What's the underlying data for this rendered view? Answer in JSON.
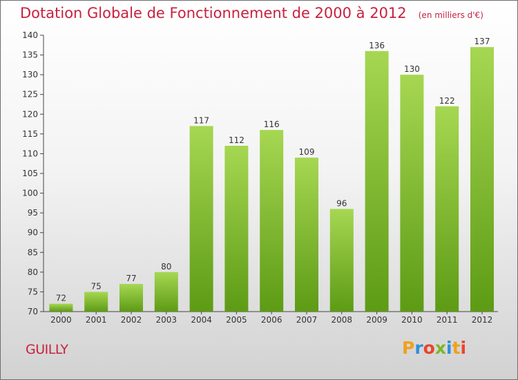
{
  "header": {
    "title": "Dotation Globale de Fonctionnement de 2000 à 2012",
    "unit": "(en milliers d'€)"
  },
  "footer": {
    "commune": "GUILLY",
    "logo_letters": [
      "P",
      "r",
      "o",
      "x",
      "i",
      "t",
      "i"
    ]
  },
  "colors": {
    "title": "#c8213f",
    "bar_light": "#a6d752",
    "bar_dark": "#5d9b15"
  },
  "chart_data": {
    "type": "bar",
    "title": "Dotation Globale de Fonctionnement de 2000 à 2012",
    "subtitle": "(en milliers d'€)",
    "categories": [
      "2000",
      "2001",
      "2002",
      "2003",
      "2004",
      "2005",
      "2006",
      "2007",
      "2008",
      "2009",
      "2010",
      "2011",
      "2012"
    ],
    "values": [
      72,
      75,
      77,
      80,
      117,
      112,
      116,
      109,
      96,
      136,
      130,
      122,
      137
    ],
    "ylim": [
      70,
      140
    ],
    "yticks": [
      70,
      75,
      80,
      85,
      90,
      95,
      100,
      105,
      110,
      115,
      120,
      125,
      130,
      135,
      140
    ],
    "grid": false,
    "xlabel": "",
    "ylabel": ""
  }
}
